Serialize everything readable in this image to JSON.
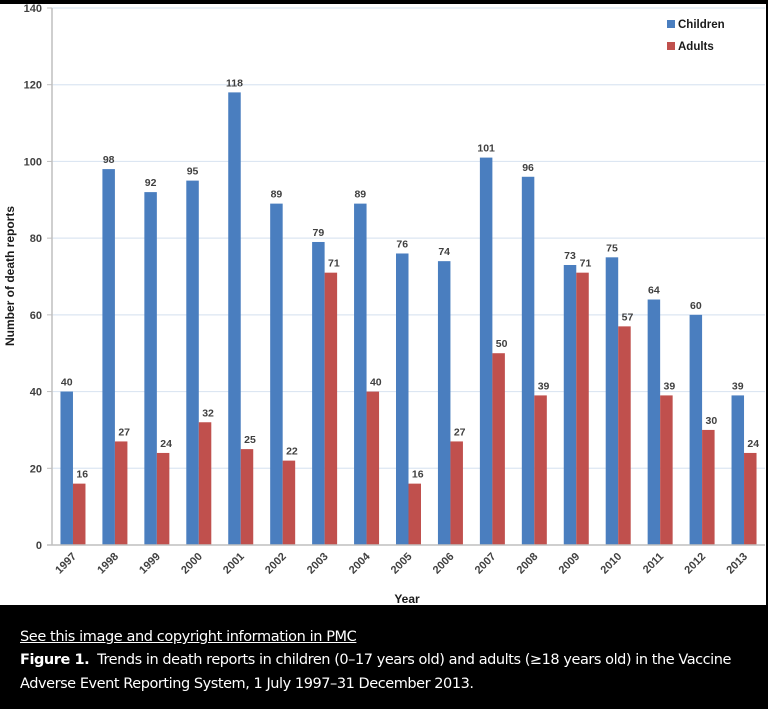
{
  "chart_data": {
    "type": "bar",
    "title": "",
    "xlabel": "Year",
    "ylabel": "Number of death reports",
    "ylim": [
      0,
      140
    ],
    "yticks": [
      0,
      20,
      40,
      60,
      80,
      100,
      120,
      140
    ],
    "grid": "horizontal",
    "legend_position": "top-right",
    "categories": [
      "1997",
      "1998",
      "1999",
      "2000",
      "2001",
      "2002",
      "2003",
      "2004",
      "2005",
      "2006",
      "2007",
      "2008",
      "2009",
      "2010",
      "2011",
      "2012",
      "2013"
    ],
    "series": [
      {
        "name": "Children",
        "color": "#4a7ebf",
        "values": [
          40,
          98,
          92,
          95,
          118,
          89,
          79,
          89,
          76,
          74,
          101,
          96,
          73,
          75,
          64,
          60,
          39
        ]
      },
      {
        "name": "Adults",
        "color": "#c0504d",
        "values": [
          16,
          27,
          24,
          32,
          25,
          22,
          71,
          40,
          16,
          27,
          50,
          39,
          71,
          57,
          39,
          30,
          24
        ]
      }
    ]
  },
  "caption": {
    "link_text": "See this image and copyright information in PMC",
    "figure_label": "Figure 1.",
    "text": "Trends in death reports in children (0–17 years old) and adults (≥18 years old) in the Vaccine Adverse Event Reporting System, 1 July 1997–31 December 2013."
  }
}
